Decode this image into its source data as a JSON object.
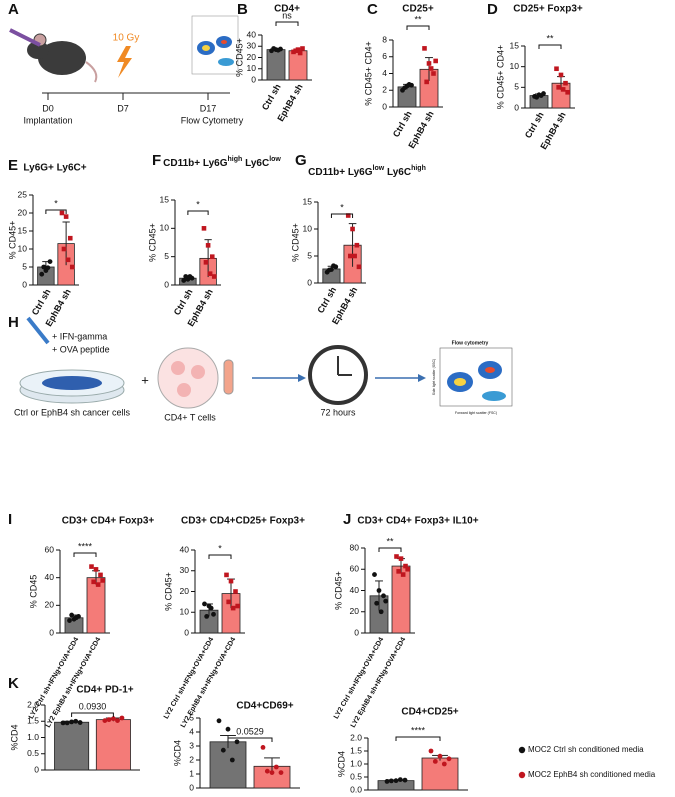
{
  "chart_data": [
    {
      "type": "bar",
      "panel": "B",
      "title": "CD4+",
      "ylabel": "% CD45+",
      "categories": [
        "Ctrl sh",
        "EphB4 sh"
      ],
      "values": [
        27,
        26
      ],
      "errors": [
        0.8,
        1.5
      ],
      "points": [
        [
          26,
          27,
          27.5,
          28,
          26.5
        ],
        [
          25,
          27,
          28,
          26,
          24
        ]
      ],
      "ylim": [
        0,
        40
      ],
      "yticks": [
        0,
        10,
        20,
        30,
        40
      ],
      "significance": "ns",
      "colors": [
        "#737373",
        "#f47b78"
      ],
      "point_colors": [
        "#111111",
        "#c0161f"
      ],
      "point_shapes": [
        "circle",
        "square"
      ]
    },
    {
      "type": "bar",
      "panel": "C",
      "title": "CD25+",
      "ylabel": "% CD45+ CD4+",
      "categories": [
        "Ctrl sh",
        "EphB4 sh"
      ],
      "values": [
        2.4,
        4.5
      ],
      "errors": [
        0.3,
        1.4
      ],
      "points": [
        [
          2.0,
          2.5,
          2.6,
          2.3,
          2.7
        ],
        [
          7.0,
          5.2,
          4.0,
          3.0,
          4.6,
          5.5
        ]
      ],
      "ylim": [
        0,
        8
      ],
      "yticks": [
        0,
        2,
        4,
        6,
        8
      ],
      "significance": "**",
      "colors": [
        "#737373",
        "#f47b78"
      ],
      "point_colors": [
        "#111111",
        "#c0161f"
      ],
      "point_shapes": [
        "circle",
        "square"
      ]
    },
    {
      "type": "bar",
      "panel": "D",
      "title": "CD25+ Foxp3+",
      "ylabel": "% CD45+ CD4+",
      "categories": [
        "Ctrl sh",
        "EphB4 sh"
      ],
      "values": [
        3.0,
        6.0
      ],
      "errors": [
        0.4,
        1.6
      ],
      "points": [
        [
          2.8,
          3.2,
          3.5,
          2.6,
          3.0
        ],
        [
          9.5,
          8.0,
          6.0,
          5.0,
          4.5,
          3.8
        ]
      ],
      "ylim": [
        0,
        15
      ],
      "yticks": [
        0,
        5,
        10,
        15
      ],
      "significance": "**",
      "colors": [
        "#737373",
        "#f47b78"
      ],
      "point_colors": [
        "#111111",
        "#c0161f"
      ],
      "point_shapes": [
        "circle",
        "square"
      ]
    },
    {
      "type": "bar",
      "panel": "E",
      "title": "Ly6G+ Ly6C+",
      "ylabel": "% CD45+",
      "categories": [
        "Ctrl sh",
        "EphB4 sh"
      ],
      "values": [
        5,
        11.5
      ],
      "errors": [
        1.5,
        6
      ],
      "points": [
        [
          3,
          4,
          6.5,
          5,
          4.8
        ],
        [
          20,
          19,
          13,
          10,
          7,
          5
        ]
      ],
      "ylim": [
        0,
        25
      ],
      "yticks": [
        0,
        5,
        10,
        15,
        20,
        25
      ],
      "significance": "*",
      "colors": [
        "#737373",
        "#f47b78"
      ],
      "point_colors": [
        "#111111",
        "#c0161f"
      ],
      "point_shapes": [
        "circle",
        "square"
      ]
    },
    {
      "type": "bar",
      "panel": "F",
      "title": [
        "CD11b+ Ly6G",
        "high",
        " Ly6C",
        "low"
      ],
      "ylabel": "% CD45+",
      "categories": [
        "Ctrl sh",
        "EphB4 sh"
      ],
      "values": [
        1.2,
        4.7
      ],
      "errors": [
        0.4,
        3.3
      ],
      "points": [
        [
          0.8,
          1.0,
          1.2,
          1.5,
          1.5
        ],
        [
          10,
          7,
          5,
          4,
          2,
          1.5
        ]
      ],
      "ylim": [
        0,
        15
      ],
      "yticks": [
        0,
        5,
        10,
        15
      ],
      "significance": "*",
      "colors": [
        "#737373",
        "#f47b78"
      ],
      "point_colors": [
        "#111111",
        "#c0161f"
      ],
      "point_shapes": [
        "circle",
        "square"
      ]
    },
    {
      "type": "bar",
      "panel": "G",
      "title": [
        "CD11b+ Ly6G",
        "low",
        " Ly6C",
        "high"
      ],
      "ylabel": "% CD45+",
      "categories": [
        "Ctrl sh",
        "EphB4 sh"
      ],
      "values": [
        2.6,
        7
      ],
      "errors": [
        0.5,
        4
      ],
      "points": [
        [
          2,
          2.5,
          3,
          2.4,
          3.2
        ],
        [
          12.5,
          10,
          7,
          5,
          5,
          3
        ]
      ],
      "ylim": [
        0,
        15
      ],
      "yticks": [
        0,
        5,
        10,
        15
      ],
      "significance": "*",
      "colors": [
        "#737373",
        "#f47b78"
      ],
      "point_colors": [
        "#111111",
        "#c0161f"
      ],
      "point_shapes": [
        "circle",
        "square"
      ]
    },
    {
      "type": "bar",
      "panel": "I",
      "title": "CD3+ CD4+ Foxp3+",
      "ylabel": "% CD45",
      "categories": [
        "LY2 Ctrl sh+IFNg+OVA+CD4",
        "LY2 EphB4 sh+IFNg+OVA+CD4"
      ],
      "values": [
        11,
        40
      ],
      "errors": [
        2,
        5
      ],
      "points": [
        [
          9,
          10,
          12,
          13,
          11
        ],
        [
          48,
          46,
          42,
          37,
          35,
          38
        ]
      ],
      "ylim": [
        0,
        60
      ],
      "yticks": [
        0,
        20,
        40,
        60
      ],
      "significance": "****",
      "colors": [
        "#737373",
        "#f47b78"
      ],
      "point_colors": [
        "#111111",
        "#c0161f"
      ],
      "point_shapes": [
        "circle",
        "square"
      ]
    },
    {
      "type": "bar",
      "title": "CD3+ CD4+CD25+ Foxp3+",
      "ylabel": "% CD45+",
      "categories": [
        "LY2 Ctrl sh+IFNg+OVA+CD4",
        "LY2 EphB4 sh+IFNg+OVA+CD4"
      ],
      "values": [
        11,
        19
      ],
      "errors": [
        3,
        7
      ],
      "points": [
        [
          14,
          13,
          9,
          8,
          12
        ],
        [
          28,
          25,
          20,
          15,
          12,
          13
        ]
      ],
      "ylim": [
        0,
        40
      ],
      "yticks": [
        0,
        10,
        20,
        30,
        40
      ],
      "significance": "*",
      "colors": [
        "#737373",
        "#f47b78"
      ],
      "point_colors": [
        "#111111",
        "#c0161f"
      ],
      "point_shapes": [
        "circle",
        "square"
      ]
    },
    {
      "type": "bar",
      "panel": "J",
      "title": "CD3+ CD4+ Foxp3+ IL10+",
      "ylabel": "% CD45+",
      "categories": [
        "LY2 Ctrl sh+IFNg+OVA+CD4",
        "LY2 EphB4 sh+IFNg+OVA+CD4"
      ],
      "values": [
        35,
        63
      ],
      "errors": [
        14,
        7
      ],
      "points": [
        [
          55,
          40,
          35,
          28,
          20,
          30
        ],
        [
          72,
          70,
          63,
          58,
          55,
          60
        ]
      ],
      "ylim": [
        0,
        80
      ],
      "yticks": [
        0,
        20,
        40,
        60,
        80
      ],
      "significance": "**",
      "colors": [
        "#737373",
        "#f47b78"
      ],
      "point_colors": [
        "#111111",
        "#c0161f"
      ],
      "point_shapes": [
        "circle",
        "square"
      ]
    },
    {
      "type": "bar",
      "panel": "K",
      "title": "CD4+ PD-1+",
      "ylabel": "%CD4",
      "values": [
        1.47,
        1.55
      ],
      "errors": [
        0.03,
        0.05
      ],
      "points": [
        [
          1.45,
          1.48,
          1.46,
          1.45,
          1.5
        ],
        [
          1.52,
          1.58,
          1.6,
          1.55,
          1.52
        ]
      ],
      "ylim": [
        0,
        2
      ],
      "yticks": [
        0,
        0.5,
        {
          "value": 1,
          "label": "1.0"
        },
        1.5,
        {
          "value": 2,
          "label": "2.0"
        }
      ],
      "significance": "0.0930",
      "colors": [
        "#737373",
        "#f47b78"
      ],
      "point_colors": [
        "#111111",
        "#c0161f"
      ],
      "point_shapes": [
        "circle",
        "circle"
      ]
    },
    {
      "type": "bar",
      "title": "CD4+CD69+",
      "ylabel": "%CD4",
      "values": [
        3.3,
        1.55
      ],
      "errors": [
        0.45,
        0.6
      ],
      "points": [
        [
          4.8,
          4.2,
          3.3,
          2.7,
          2.0
        ],
        [
          2.9,
          1.1,
          1.1,
          1.2,
          1.5
        ]
      ],
      "ylim": [
        0,
        5
      ],
      "yticks": [
        0,
        1,
        2,
        3,
        4,
        5
      ],
      "significance": "0.0529",
      "colors": [
        "#737373",
        "#f47b78"
      ],
      "point_colors": [
        "#111111",
        "#c0161f"
      ],
      "point_shapes": [
        "circle",
        "circle"
      ]
    },
    {
      "type": "bar",
      "title": "CD4+CD25+",
      "ylabel": "%CD4",
      "values": [
        0.36,
        1.23
      ],
      "errors": [
        0.03,
        0.1
      ],
      "points": [
        [
          0.33,
          0.36,
          0.38,
          0.35,
          0.4
        ],
        [
          1.5,
          1.3,
          1.2,
          1.1,
          1.0
        ]
      ],
      "ylim": [
        0,
        2
      ],
      "yticks": [
        {
          "value": 0,
          "label": "0.0"
        },
        0.5,
        {
          "value": 1,
          "label": "1.0"
        },
        1.5,
        {
          "value": 2,
          "label": "2.0"
        }
      ],
      "significance": "****",
      "colors": [
        "#737373",
        "#f47b78"
      ],
      "point_colors": [
        "#111111",
        "#c0161f"
      ],
      "point_shapes": [
        "circle",
        "circle"
      ],
      "legend": [
        {
          "name": "MOC2 Ctrl sh conditioned media",
          "color": "#111111"
        },
        {
          "name": "MOC2 EphB4 sh conditioned media",
          "color": "#c0161f"
        }
      ]
    }
  ],
  "panel_a": {
    "panel": "A",
    "dose": "10 Gy",
    "timeline": [
      {
        "day": "D0",
        "label": "Implantation"
      },
      {
        "day": "D7"
      },
      {
        "day": "D17",
        "label": "Flow Cytometry"
      }
    ]
  },
  "panel_h": {
    "panel": "H",
    "treatments": [
      "+ IFN-gamma",
      "+ OVA peptide"
    ],
    "cells": "Ctrl or EphB4 sh cancer cells",
    "plus": "+",
    "t_cells": "CD4+ T cells",
    "duration": "72 hours",
    "flow_title": "Flow cytometry",
    "flow_y": "Side light scatter (SSC)",
    "flow_x": "Forward light scatter (FSC)"
  }
}
